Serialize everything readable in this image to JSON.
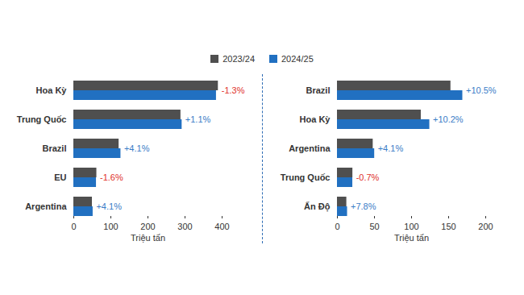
{
  "chart_data": [
    {
      "type": "bar",
      "orientation": "horizontal",
      "legend": "top",
      "categories": [
        "Hoa Kỳ",
        "Trung Quốc",
        "Brazil",
        "EU",
        "Argentina"
      ],
      "series": [
        {
          "name": "2023/24",
          "color": "#4f4f4f",
          "values": [
            389.7,
            288.8,
            122,
            62,
            50
          ]
        },
        {
          "name": "2024/25",
          "color": "#2170c1",
          "values": [
            384.6,
            292,
            127,
            61,
            52
          ]
        }
      ],
      "annotations": [
        "-1.3%",
        "+1.1%",
        "+4.1%",
        "-1.6%",
        "+4.1%"
      ],
      "xlabel": "Triệu tấn",
      "xlim": [
        0,
        400
      ],
      "xticks": [
        0,
        100,
        200,
        300,
        400
      ]
    },
    {
      "type": "bar",
      "orientation": "horizontal",
      "categories": [
        "Brazil",
        "Hoa Kỳ",
        "Argentina",
        "Trung Quốc",
        "Ấn Độ"
      ],
      "series": [
        {
          "name": "2023/24",
          "color": "#4f4f4f",
          "values": [
            153,
            113,
            48.2,
            20.8,
            12.6
          ]
        },
        {
          "name": "2024/25",
          "color": "#2170c1",
          "values": [
            169,
            124.5,
            50.2,
            20.7,
            13.6
          ]
        }
      ],
      "annotations": [
        "+10.5%",
        "+10.2%",
        "+4.1%",
        "-0.7%",
        "+7.8%"
      ],
      "xlabel": "Triệu tấn",
      "xlim": [
        0,
        200
      ],
      "xticks": [
        0,
        50,
        100,
        150,
        200
      ]
    }
  ]
}
